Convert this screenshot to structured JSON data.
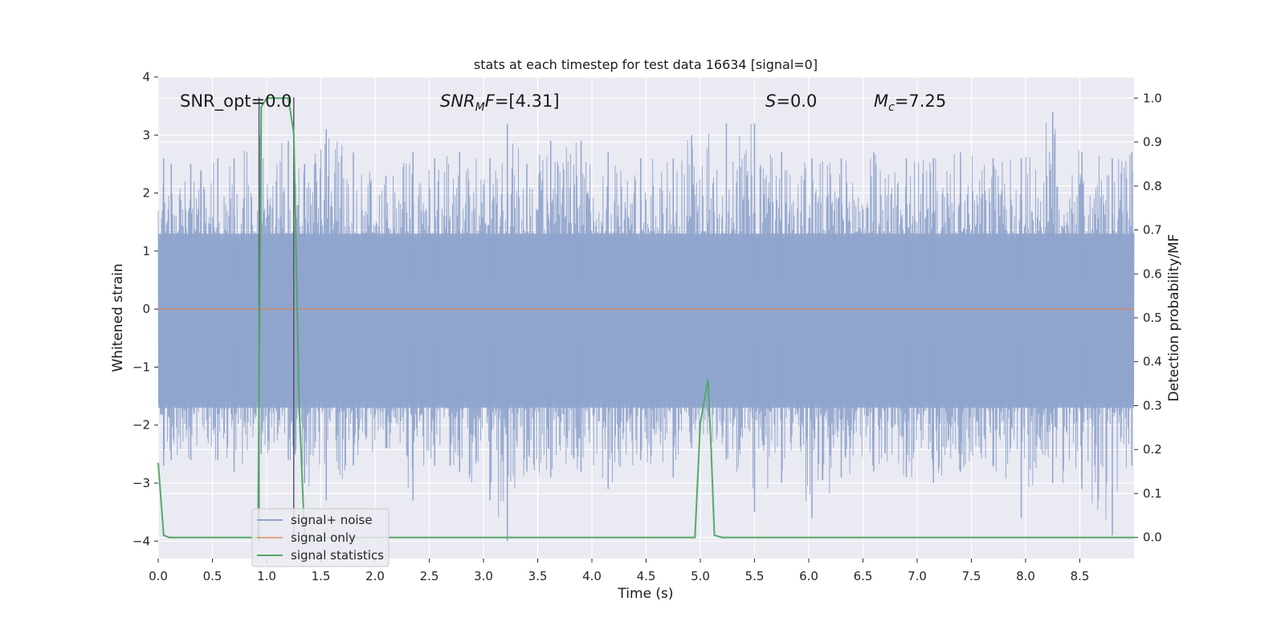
{
  "chart_data": {
    "type": "line",
    "title": "stats at each timestep for test data 16634 [signal=0]",
    "xlabel": "Time (s)",
    "ylabel": "Whitened strain",
    "y2label": "Detection probability/MF",
    "xlim": [
      0.0,
      9.0
    ],
    "ylim": [
      -4.3,
      4.0
    ],
    "y2lim": [
      -0.048,
      1.048
    ],
    "x_ticks": [
      0.0,
      0.5,
      1.0,
      1.5,
      2.0,
      2.5,
      3.0,
      3.5,
      4.0,
      4.5,
      5.0,
      5.5,
      6.0,
      6.5,
      7.0,
      7.5,
      8.0,
      8.5
    ],
    "x_tick_labels": [
      "0.0",
      "0.5",
      "1.0",
      "1.5",
      "2.0",
      "2.5",
      "3.0",
      "3.5",
      "4.0",
      "4.5",
      "5.0",
      "5.5",
      "6.0",
      "6.5",
      "7.0",
      "7.5",
      "8.0",
      "8.5"
    ],
    "y_ticks": [
      4,
      3,
      2,
      1,
      0,
      -1,
      -2,
      -3,
      -4
    ],
    "y_tick_labels": [
      "4",
      "3",
      "2",
      "1",
      "0",
      "−1",
      "−2",
      "−3",
      "−4"
    ],
    "y2_ticks": [
      1.0,
      0.9,
      0.8,
      0.7,
      0.6,
      0.5,
      0.4,
      0.3,
      0.2,
      0.1,
      0.0
    ],
    "y2_tick_labels": [
      "1.0",
      "0.9",
      "0.8",
      "0.7",
      "0.6",
      "0.5",
      "0.4",
      "0.3",
      "0.2",
      "0.1",
      "0.0"
    ],
    "grid": true,
    "legend_position": "lower-left",
    "annotations": [
      {
        "text": "SNR_opt=0.0",
        "x": 0.2,
        "y": 3.6
      },
      {
        "text": "SNR_MF=[4.31]",
        "x": 2.6,
        "y": 3.6,
        "math": true,
        "base": "SNR",
        "sub": "M",
        "rest": "F=[4.31]"
      },
      {
        "text": "S=0.0",
        "x": 5.6,
        "y": 3.6,
        "math": true,
        "base": "S",
        "sub": "",
        "rest": "=0.0"
      },
      {
        "text": "M_c=7.25",
        "x": 6.6,
        "y": 3.6,
        "math": true,
        "base": "M",
        "sub": "c",
        "rest": "=7.25"
      }
    ],
    "vertical_lines": [
      0.93,
      1.25
    ],
    "vertical_line_ylim": [
      -4.0,
      3.65
    ],
    "series": [
      {
        "name": "signal+ noise",
        "axis": "left",
        "color": "#8fa4cc",
        "envelope": true,
        "peaks": [
          {
            "x": 0.05,
            "hi": 2.6,
            "lo": -2.7
          },
          {
            "x": 0.12,
            "hi": 2.5,
            "lo": -2.6
          },
          {
            "x": 0.3,
            "hi": 2.5,
            "lo": -2.6
          },
          {
            "x": 0.55,
            "hi": 2.6,
            "lo": -2.6
          },
          {
            "x": 0.7,
            "hi": 2.6,
            "lo": -2.8
          },
          {
            "x": 0.95,
            "hi": 3.1,
            "lo": -2.5
          },
          {
            "x": 1.2,
            "hi": 2.9,
            "lo": -2.6
          },
          {
            "x": 1.35,
            "hi": 2.5,
            "lo": -3.0
          },
          {
            "x": 1.55,
            "hi": 3.1,
            "lo": -3.3
          },
          {
            "x": 1.8,
            "hi": 2.7,
            "lo": -2.7
          },
          {
            "x": 2.1,
            "hi": 2.3,
            "lo": -2.4
          },
          {
            "x": 2.35,
            "hi": 2.7,
            "lo": -3.3
          },
          {
            "x": 2.55,
            "hi": 2.6,
            "lo": -2.7
          },
          {
            "x": 2.78,
            "hi": 2.7,
            "lo": -2.8
          },
          {
            "x": 3.06,
            "hi": 2.6,
            "lo": -3.3
          },
          {
            "x": 3.22,
            "hi": 3.2,
            "lo": -4.0
          },
          {
            "x": 3.4,
            "hi": 2.5,
            "lo": -2.8
          },
          {
            "x": 3.62,
            "hi": 2.9,
            "lo": -2.9
          },
          {
            "x": 3.9,
            "hi": 2.9,
            "lo": -2.8
          },
          {
            "x": 4.15,
            "hi": 2.7,
            "lo": -3.1
          },
          {
            "x": 4.45,
            "hi": 2.6,
            "lo": -2.6
          },
          {
            "x": 4.75,
            "hi": 2.6,
            "lo": -2.9
          },
          {
            "x": 4.92,
            "hi": 3.0,
            "lo": -2.4
          },
          {
            "x": 5.24,
            "hi": 3.2,
            "lo": -2.6
          },
          {
            "x": 5.5,
            "hi": 3.2,
            "lo": -3.5
          },
          {
            "x": 5.75,
            "hi": 2.7,
            "lo": -3.0
          },
          {
            "x": 6.03,
            "hi": 2.6,
            "lo": -3.6
          },
          {
            "x": 6.3,
            "hi": 2.6,
            "lo": -2.9
          },
          {
            "x": 6.6,
            "hi": 2.7,
            "lo": -2.8
          },
          {
            "x": 6.9,
            "hi": 2.6,
            "lo": -2.9
          },
          {
            "x": 7.15,
            "hi": 2.6,
            "lo": -3.0
          },
          {
            "x": 7.4,
            "hi": 2.7,
            "lo": -2.8
          },
          {
            "x": 7.7,
            "hi": 2.6,
            "lo": -2.7
          },
          {
            "x": 7.96,
            "hi": 2.6,
            "lo": -3.6
          },
          {
            "x": 8.25,
            "hi": 3.4,
            "lo": -3.0
          },
          {
            "x": 8.52,
            "hi": 2.7,
            "lo": -3.1
          },
          {
            "x": 8.8,
            "hi": 2.6,
            "lo": -3.9
          },
          {
            "x": 8.98,
            "hi": 2.7,
            "lo": -2.7
          }
        ]
      },
      {
        "name": "signal only",
        "axis": "left",
        "color": "#dd8452",
        "x": [
          0.0,
          9.0
        ],
        "y": [
          0.0,
          0.0
        ]
      },
      {
        "name": "signal statistics",
        "axis": "right",
        "color": "#55a868",
        "x": [
          0.0,
          0.05,
          0.1,
          0.15,
          0.2,
          0.88,
          0.92,
          0.95,
          1.0,
          1.05,
          1.2,
          1.25,
          1.3,
          1.35,
          1.4,
          4.9,
          4.95,
          5.0,
          5.07,
          5.1,
          5.13,
          5.2,
          5.3,
          9.0
        ],
        "y": [
          0.17,
          0.005,
          0.0,
          0.0,
          0.0,
          0.0,
          0.0,
          0.98,
          1.0,
          1.0,
          1.0,
          0.92,
          0.3,
          0.0,
          0.0,
          0.0,
          0.0,
          0.26,
          0.36,
          0.2,
          0.005,
          0.0,
          0.0,
          0.0
        ]
      }
    ]
  }
}
